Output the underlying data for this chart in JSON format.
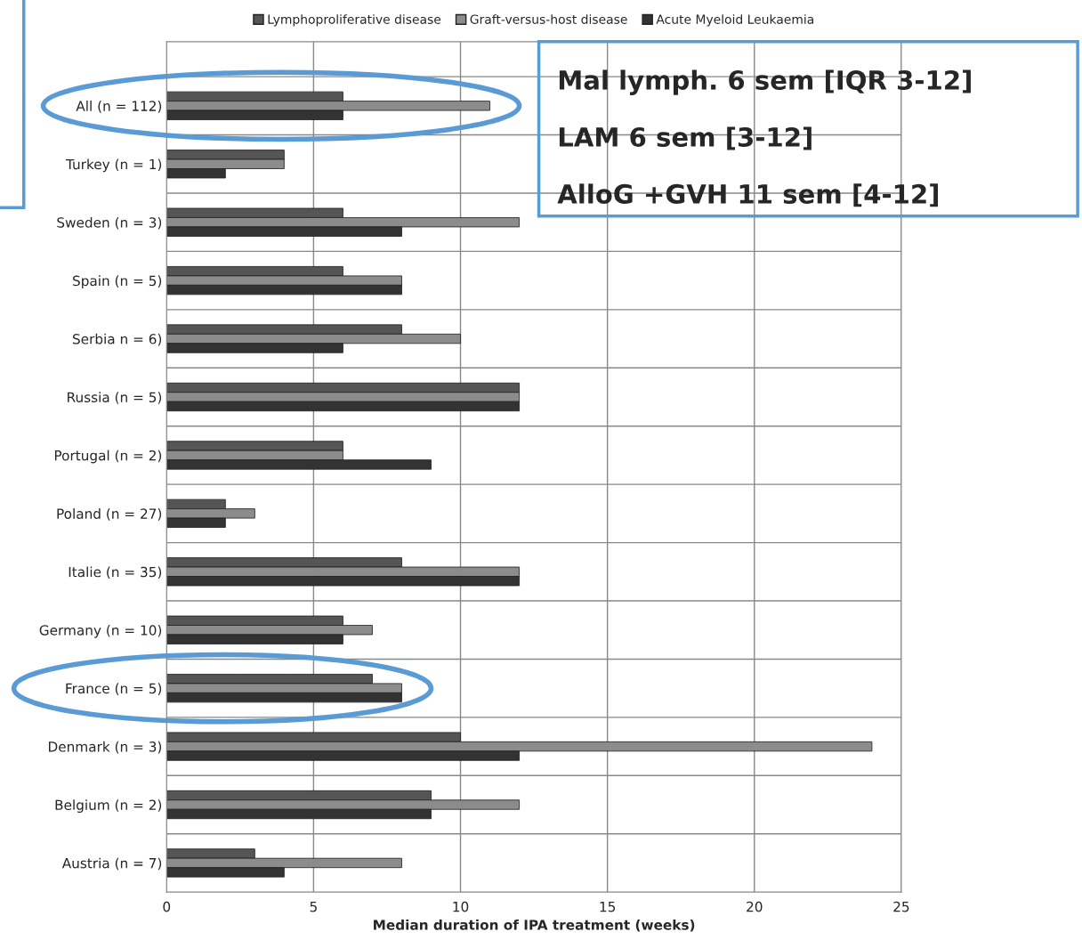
{
  "chart_data": {
    "type": "bar",
    "orientation": "horizontal",
    "categories": [
      "All (n = 112)",
      "Turkey (n = 1)",
      "Sweden (n = 3)",
      "Spain (n = 5)",
      "Serbia n = 6)",
      "Russia (n = 5)",
      "Portugal (n = 2)",
      "Poland (n = 27)",
      "Italie (n = 35)",
      "Germany (n = 10)",
      "France (n = 5)",
      "Denmark (n = 3)",
      "Belgium (n = 2)",
      "Austria (n = 7)"
    ],
    "series": [
      {
        "name": "Lymphoproliferative disease",
        "color": "#555555",
        "values": [
          6,
          4,
          6,
          6,
          8,
          12,
          6,
          2,
          8,
          6,
          7,
          10,
          9,
          3
        ]
      },
      {
        "name": "Graft-versus-host disease",
        "color": "#8c8c8c",
        "values": [
          11,
          4,
          12,
          8,
          10,
          12,
          6,
          3,
          12,
          7,
          8,
          24,
          12,
          8
        ]
      },
      {
        "name": "Acute Myeloid Leukaemia",
        "color": "#333333",
        "values": [
          6,
          2,
          8,
          8,
          6,
          12,
          9,
          2,
          12,
          6,
          8,
          12,
          9,
          4
        ]
      }
    ],
    "xlabel": "Median duration of IPA treatment (weeks)",
    "xlim": [
      0,
      25
    ],
    "xticks": [
      0,
      5,
      10,
      15,
      20,
      25
    ],
    "grid": true,
    "legend": "top",
    "annotations": [
      "Mal lymph. 6 sem [IQR 3-12]",
      "LAM 6 sem [3-12]",
      "AlloG +GVH 11 sem [4-12]"
    ]
  }
}
